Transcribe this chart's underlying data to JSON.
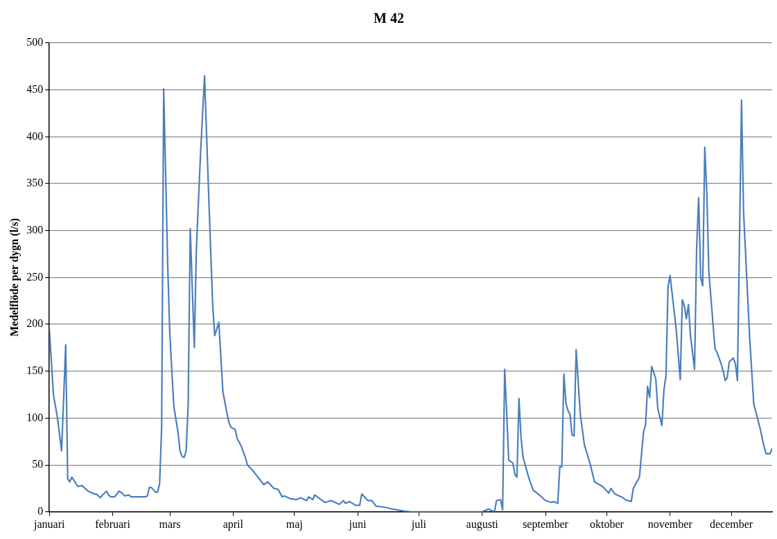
{
  "chart_data": {
    "type": "line",
    "title": "M 42",
    "ylabel": "Medelflöde per dygn (l/s)",
    "x": [
      "--01-01",
      "--01-03",
      "--01-05",
      "--01-07",
      "--01-09",
      "--01-10",
      "--01-11",
      "--01-12",
      "--01-15",
      "--01-17",
      "--01-20",
      "--01-23",
      "--01-24",
      "--01-26",
      "--01-27",
      "--01-29",
      "--01-30",
      "--01-31",
      "--02-02",
      "--02-04",
      "--02-05",
      "--02-07",
      "--02-09",
      "--02-10",
      "--02-17",
      "--02-18",
      "--02-19",
      "--02-20",
      "--02-22",
      "--02-23",
      "--02-24",
      "--02-25",
      "--02-26",
      "--02-28",
      "--03-01",
      "--03-02",
      "--03-03",
      "--03-05",
      "--03-06",
      "--03-07",
      "--03-08",
      "--03-09",
      "--03-10",
      "--03-11",
      "--03-13",
      "--03-14",
      "--03-16",
      "--03-18",
      "--03-20",
      "--03-22",
      "--03-23",
      "--03-25",
      "--03-27",
      "--03-29",
      "--03-30",
      "--03-31",
      "--04-02",
      "--04-03",
      "--04-05",
      "--04-07",
      "--04-08",
      "--04-11",
      "--04-16",
      "--04-18",
      "--04-21",
      "--04-23",
      "--04-25",
      "--04-26",
      "--04-29",
      "--05-02",
      "--05-04",
      "--05-07",
      "--05-08",
      "--05-10",
      "--05-11",
      "--05-16",
      "--05-19",
      "--05-23",
      "--05-25",
      "--05-26",
      "--05-28",
      "--05-31",
      "--06-02",
      "--06-03",
      "--06-06",
      "--06-08",
      "--06-10",
      "--06-14",
      "--06-18",
      "--06-23",
      "--06-27",
      "--08-01",
      "--08-04",
      "--08-07",
      "--08-08",
      "--08-10",
      "--08-11",
      "--08-12",
      "--08-13",
      "--08-14",
      "--08-16",
      "--08-17",
      "--08-18",
      "--08-19",
      "--08-20",
      "--08-21",
      "--08-24",
      "--08-26",
      "--08-29",
      "--09-01",
      "--09-04",
      "--09-05",
      "--09-07",
      "--09-08",
      "--09-09",
      "--09-10",
      "--09-11",
      "--09-12",
      "--09-13",
      "--09-14",
      "--09-15",
      "--09-16",
      "--09-18",
      "--09-20",
      "--09-23",
      "--09-25",
      "--09-29",
      "--10-02",
      "--10-03",
      "--10-05",
      "--10-09",
      "--10-10",
      "--10-13",
      "--10-14",
      "--10-16",
      "--10-17",
      "--10-19",
      "--10-20",
      "--10-21",
      "--10-22",
      "--10-23",
      "--10-25",
      "--10-26",
      "--10-28",
      "--10-29",
      "--10-30",
      "--10-31",
      "--11-01",
      "--11-04",
      "--11-06",
      "--11-07",
      "--11-08",
      "--11-09",
      "--11-10",
      "--11-11",
      "--11-13",
      "--11-14",
      "--11-15",
      "--11-16",
      "--11-17",
      "--11-18",
      "--11-19",
      "--11-20",
      "--11-23",
      "--11-24",
      "--11-26",
      "--11-27",
      "--11-28",
      "--11-29",
      "--11-30",
      "--12-02",
      "--12-03",
      "--12-04",
      "--12-06",
      "--12-07",
      "--12-10",
      "--12-12",
      "--12-15",
      "--12-17",
      "--12-18",
      "--12-20",
      "--12-21"
    ],
    "series": [
      {
        "color": "#4a7ebb",
        "values": [
          195,
          125,
          100,
          65,
          178,
          35,
          32,
          37,
          27,
          28,
          22,
          19,
          19,
          15,
          18,
          22,
          18,
          16,
          16,
          22,
          21,
          17,
          18,
          16,
          16,
          17,
          26,
          26,
          21,
          21,
          30,
          90,
          451,
          260,
          190,
          150,
          112,
          85,
          65,
          59,
          58,
          65,
          115,
          302,
          175,
          280,
          380,
          465,
          340,
          220,
          188,
          202,
          128,
          105,
          95,
          90,
          88,
          78,
          70,
          58,
          50,
          43,
          29,
          32,
          25,
          24,
          16,
          17,
          14,
          13,
          15,
          12,
          16,
          13,
          18,
          10,
          12,
          8,
          12,
          9,
          11,
          7,
          7,
          19,
          12,
          12,
          6,
          5,
          3,
          1,
          0,
          0,
          3,
          0,
          12,
          13,
          2,
          152,
          105,
          55,
          52,
          40,
          37,
          121,
          80,
          58,
          35,
          23,
          18,
          12,
          10,
          11,
          9,
          48,
          48,
          147,
          116,
          108,
          104,
          82,
          81,
          173,
          105,
          72,
          50,
          32,
          27,
          20,
          25,
          19,
          15,
          13,
          11,
          25,
          33,
          37,
          85,
          93,
          134,
          122,
          155,
          142,
          110,
          92,
          130,
          145,
          240,
          252,
          195,
          141,
          226,
          220,
          206,
          221,
          188,
          152,
          280,
          335,
          250,
          241,
          389,
          340,
          256,
          174,
          170,
          158,
          150,
          140,
          143,
          160,
          164,
          158,
          140,
          439,
          320,
          185,
          115,
          90,
          70,
          62,
          62,
          68
        ]
      }
    ],
    "xlim": [
      "--01-01",
      "--12-21"
    ],
    "xticks": [
      {
        "value": "--01-01",
        "label": "januari"
      },
      {
        "value": "--02-01",
        "label": "februari"
      },
      {
        "value": "--03-01",
        "label": "mars"
      },
      {
        "value": "--04-01",
        "label": "april"
      },
      {
        "value": "--05-01",
        "label": "maj"
      },
      {
        "value": "--06-01",
        "label": "juni"
      },
      {
        "value": "--07-01",
        "label": "juli"
      },
      {
        "value": "--08-01",
        "label": "augusti"
      },
      {
        "value": "--09-01",
        "label": "september"
      },
      {
        "value": "--10-01",
        "label": "oktober"
      },
      {
        "value": "--11-01",
        "label": "november"
      },
      {
        "value": "--12-01",
        "label": "december"
      }
    ],
    "ylim": [
      0,
      500
    ],
    "yticks": [
      0,
      50,
      100,
      150,
      200,
      250,
      300,
      350,
      400,
      450,
      500
    ],
    "grid": "y",
    "legend": false,
    "marker": "none",
    "line_style": "solid"
  }
}
